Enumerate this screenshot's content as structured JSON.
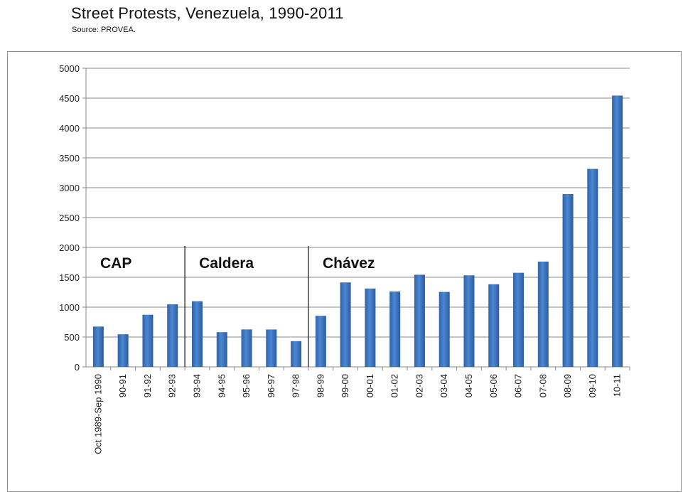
{
  "title": "Street Protests, Venezuela, 1990-2011",
  "source": "Source:  PROVEA.",
  "chart_data": {
    "type": "bar",
    "categories": [
      "Oct 1989-Sep 1990",
      "90-91",
      "91-92",
      "92-93",
      "93-94",
      "94-95",
      "95-96",
      "96-97",
      "97-98",
      "98-99",
      "99-00",
      "00-01",
      "01-02",
      "02-03",
      "03-04",
      "04-05",
      "05-06",
      "06-07",
      "07-08",
      "08-09",
      "09-10",
      "10-11"
    ],
    "values": [
      675,
      546,
      873,
      1047,
      1099,
      581,
      627,
      626,
      431,
      855,
      1414,
      1312,
      1262,
      1543,
      1255,
      1533,
      1383,
      1576,
      1763,
      2893,
      3315,
      4543
    ],
    "ylim": [
      0,
      5000
    ],
    "yticks": [
      0,
      500,
      1000,
      1500,
      2000,
      2500,
      3000,
      3500,
      4000,
      4500,
      5000
    ],
    "grid": true,
    "bar_color": "#4178c4",
    "annotations": [
      {
        "label": "CAP",
        "start_index": 0
      },
      {
        "label": "Caldera",
        "start_index": 4
      },
      {
        "label": "Chávez",
        "start_index": 9
      }
    ]
  }
}
